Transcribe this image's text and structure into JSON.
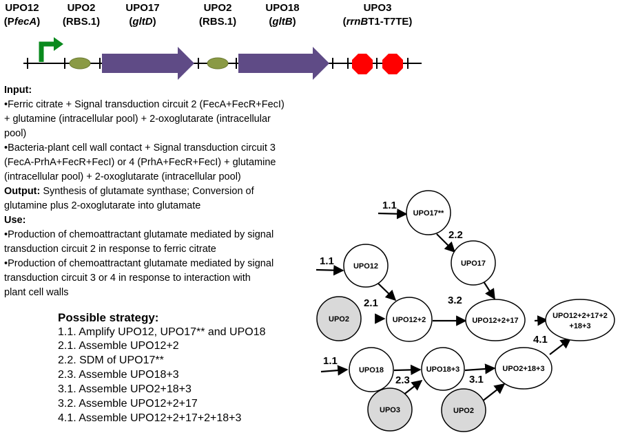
{
  "parts": [
    {
      "id": "UPO12",
      "sub_prefix": "(P",
      "sub_italic": "fecA",
      "sub_suffix": ")"
    },
    {
      "id": "UPO2",
      "sub_prefix": "(RBS.1)",
      "sub_italic": "",
      "sub_suffix": ""
    },
    {
      "id": "UPO17",
      "sub_prefix": "(",
      "sub_italic": "gltD",
      "sub_suffix": ")"
    },
    {
      "id": "UPO2",
      "sub_prefix": "(RBS.1)",
      "sub_italic": "",
      "sub_suffix": ""
    },
    {
      "id": "UPO18",
      "sub_prefix": "(",
      "sub_italic": "gltB",
      "sub_suffix": ")"
    },
    {
      "id": "UPO3",
      "sub_prefix": "(",
      "sub_italic": "rrnB",
      "sub_suffix": "T1-T7TE)"
    }
  ],
  "description": [
    {
      "bold": "Input:",
      "rest": ""
    },
    {
      "bold": "",
      "rest": "•Ferric citrate + Signal transduction circuit 2 (FecA+FecR+FecI)"
    },
    {
      "bold": "",
      "rest": "+ glutamine (intracellular pool) + 2-oxoglutarate (intracellular"
    },
    {
      "bold": "",
      "rest": "pool)"
    },
    {
      "bold": "",
      "rest": "•Bacteria-plant cell wall contact + Signal transduction circuit 3"
    },
    {
      "bold": "",
      "rest": "(FecA-PrhA+FecR+FecI) or 4 (PrhA+FecR+FecI) + glutamine"
    },
    {
      "bold": "",
      "rest": "(intracellular pool) + 2-oxoglutarate (intracellular pool)"
    },
    {
      "bold": "Output:",
      "rest": " Synthesis of glutamate synthase; Conversion of"
    },
    {
      "bold": "",
      "rest": "glutamine plus 2-oxoglutarate into glutamate"
    },
    {
      "bold": "Use:",
      "rest": ""
    },
    {
      "bold": "",
      "rest": "•Production of chemoattractant glutamate mediated by signal"
    },
    {
      "bold": "",
      "rest": "transduction circuit 2 in response to ferric citrate"
    },
    {
      "bold": "",
      "rest": "•Production of chemoattractant glutamate mediated by signal"
    },
    {
      "bold": "",
      "rest": "transduction circuit 3 or 4 in response to interaction with"
    },
    {
      "bold": "",
      "rest": "plant cell walls"
    }
  ],
  "strategy": {
    "title": "Possible strategy:",
    "steps": [
      "1.1. Amplify UPO12, UPO17** and UPO18",
      "2.1. Assemble UPO12+2",
      "2.2. SDM of UPO17**",
      "2.3. Assemble UPO18+3",
      "3.1. Assemble UPO2+18+3",
      "3.2. Assemble UPO12+2+17",
      "4.1. Assemble UPO12+2+17+2+18+3"
    ]
  },
  "flow": {
    "nodes": [
      {
        "key": "upo17ss",
        "lines": [
          "UPO17**"
        ],
        "shaded": false
      },
      {
        "key": "upo17",
        "lines": [
          "UPO17"
        ],
        "shaded": false
      },
      {
        "key": "upo12",
        "lines": [
          "UPO12"
        ],
        "shaded": false
      },
      {
        "key": "upo2a",
        "lines": [
          "UPO2"
        ],
        "shaded": true
      },
      {
        "key": "upo12_2",
        "lines": [
          "UPO12+2"
        ],
        "shaded": false
      },
      {
        "key": "upo12_2_17",
        "lines": [
          "UPO12+2+17"
        ],
        "shaded": false
      },
      {
        "key": "final",
        "lines": [
          "UPO12+2+17+2",
          "+18+3"
        ],
        "shaded": false
      },
      {
        "key": "upo18",
        "lines": [
          "UPO18"
        ],
        "shaded": false
      },
      {
        "key": "upo18_3",
        "lines": [
          "UPO18+3"
        ],
        "shaded": false
      },
      {
        "key": "upo2_18_3",
        "lines": [
          "UPO2+18+3"
        ],
        "shaded": false
      },
      {
        "key": "upo3",
        "lines": [
          "UPO3"
        ],
        "shaded": true
      },
      {
        "key": "upo2b",
        "lines": [
          "UPO2"
        ],
        "shaded": true
      }
    ],
    "steps": [
      {
        "key": "s11a",
        "label": "1.1"
      },
      {
        "key": "s22",
        "label": "2.2"
      },
      {
        "key": "s11b",
        "label": "1.1"
      },
      {
        "key": "s21",
        "label": "2.1"
      },
      {
        "key": "s32",
        "label": "3.2"
      },
      {
        "key": "s41",
        "label": "4.1"
      },
      {
        "key": "s11c",
        "label": "1.1"
      },
      {
        "key": "s23",
        "label": "2.3"
      },
      {
        "key": "s31",
        "label": "3.1"
      }
    ]
  },
  "colors": {
    "promoter_arrow": "#0a8a1e",
    "rbs": "#8a9a45",
    "cds": "#5f4b86",
    "terminator": "#ff0000",
    "shaded_node": "#d9d9d9"
  }
}
